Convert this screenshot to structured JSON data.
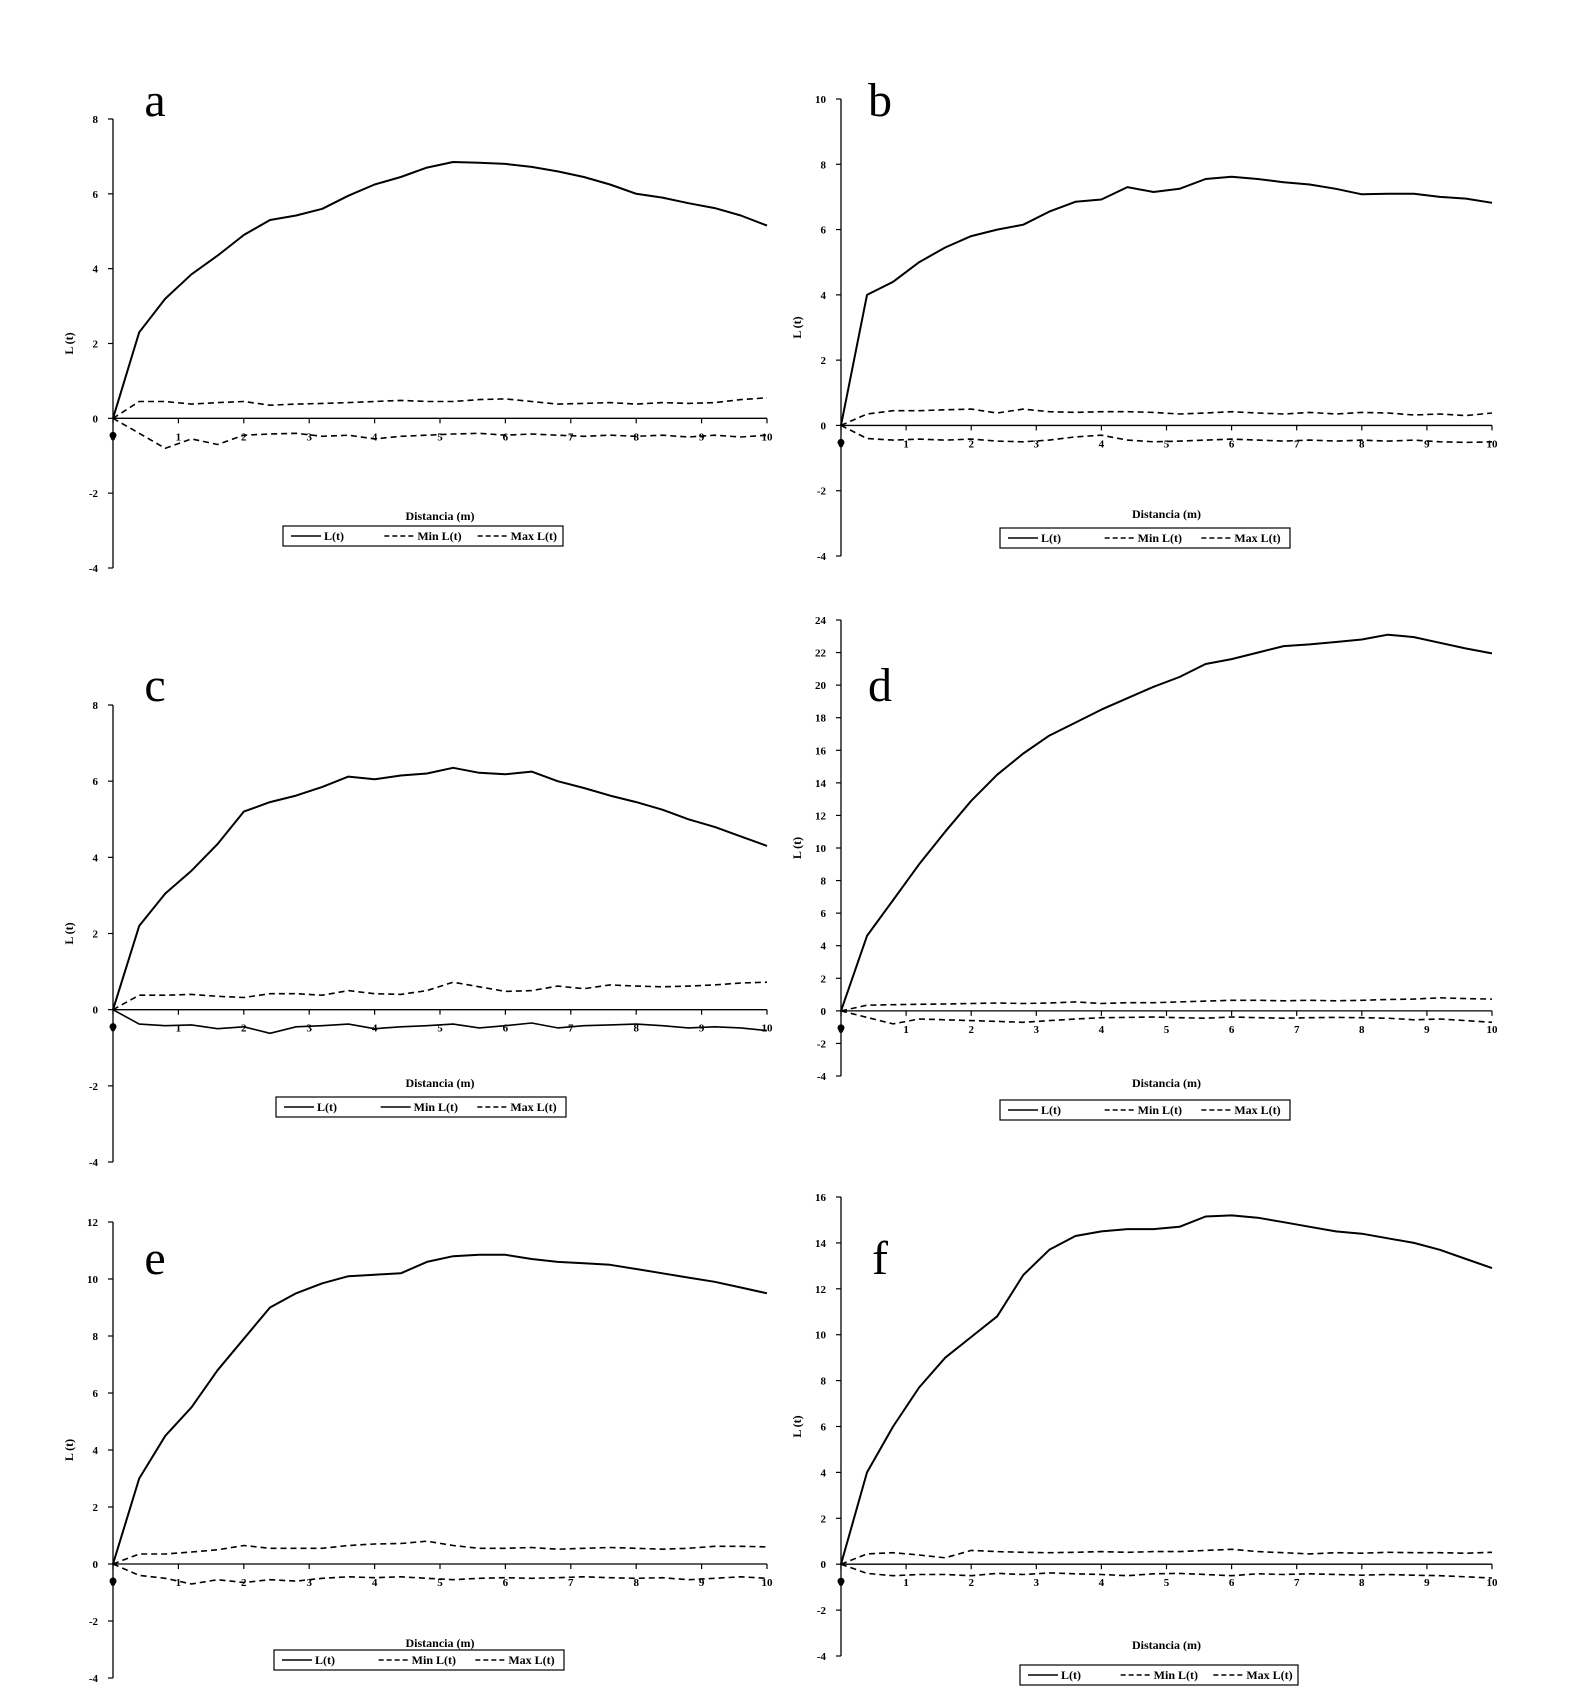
{
  "figure": {
    "xlabel": "Distancia (m)",
    "ylabel": "L (t)",
    "legend": [
      "L(t)",
      "Min L(t)",
      "Max L(t)"
    ]
  },
  "chart_data": [
    {
      "panel": "a",
      "type": "line",
      "x": [
        0,
        0.4,
        0.8,
        1.2,
        1.6,
        2,
        2.4,
        2.8,
        3.2,
        3.6,
        4,
        4.4,
        4.8,
        5.2,
        5.6,
        6,
        6.4,
        6.8,
        7.2,
        7.6,
        8,
        8.4,
        8.8,
        9.2,
        9.6,
        10
      ],
      "ylim": [
        -4,
        8
      ],
      "yticks": [
        -4,
        -2,
        0,
        2,
        4,
        6,
        8
      ],
      "xlim": [
        0,
        10
      ],
      "minmax_style": [
        "dashed",
        "dashed"
      ],
      "series": [
        {
          "name": "L(t)",
          "values": [
            0,
            2.3,
            3.2,
            3.85,
            4.35,
            4.9,
            5.3,
            5.42,
            5.6,
            5.95,
            6.25,
            6.45,
            6.7,
            6.85,
            6.83,
            6.8,
            6.72,
            6.6,
            6.45,
            6.25,
            6.0,
            5.9,
            5.75,
            5.62,
            5.42,
            5.15
          ]
        },
        {
          "name": "Min L(t)",
          "values": [
            0,
            -0.4,
            -0.8,
            -0.55,
            -0.7,
            -0.45,
            -0.42,
            -0.4,
            -0.48,
            -0.45,
            -0.55,
            -0.48,
            -0.45,
            -0.42,
            -0.4,
            -0.45,
            -0.42,
            -0.45,
            -0.48,
            -0.45,
            -0.48,
            -0.45,
            -0.5,
            -0.45,
            -0.5,
            -0.45
          ]
        },
        {
          "name": "Max L(t)",
          "values": [
            0,
            0.45,
            0.45,
            0.38,
            0.42,
            0.45,
            0.35,
            0.38,
            0.4,
            0.42,
            0.45,
            0.48,
            0.45,
            0.45,
            0.5,
            0.52,
            0.45,
            0.38,
            0.4,
            0.42,
            0.38,
            0.42,
            0.4,
            0.42,
            0.5,
            0.55
          ]
        }
      ]
    },
    {
      "panel": "b",
      "type": "line",
      "x": [
        0,
        0.4,
        0.8,
        1.2,
        1.6,
        2,
        2.4,
        2.8,
        3.2,
        3.6,
        4,
        4.4,
        4.8,
        5.2,
        5.6,
        6,
        6.4,
        6.8,
        7.2,
        7.6,
        8,
        8.4,
        8.8,
        9.2,
        9.6,
        10
      ],
      "ylim": [
        -4,
        10
      ],
      "yticks": [
        -4,
        -2,
        0,
        2,
        4,
        6,
        8,
        10
      ],
      "xlim": [
        0,
        10
      ],
      "minmax_style": [
        "dashed",
        "dashed"
      ],
      "series": [
        {
          "name": "L(t)",
          "values": [
            0,
            4.0,
            4.4,
            5.0,
            5.45,
            5.8,
            6.0,
            6.15,
            6.55,
            6.85,
            6.92,
            7.3,
            7.15,
            7.25,
            7.55,
            7.62,
            7.55,
            7.45,
            7.38,
            7.25,
            7.08,
            7.1,
            7.1,
            7.0,
            6.95,
            6.82
          ]
        },
        {
          "name": "Min L(t)",
          "values": [
            0,
            -0.4,
            -0.45,
            -0.42,
            -0.45,
            -0.42,
            -0.48,
            -0.5,
            -0.45,
            -0.35,
            -0.3,
            -0.45,
            -0.5,
            -0.48,
            -0.45,
            -0.42,
            -0.45,
            -0.48,
            -0.45,
            -0.48,
            -0.45,
            -0.48,
            -0.45,
            -0.5,
            -0.52,
            -0.5
          ]
        },
        {
          "name": "Max L(t)",
          "values": [
            0,
            0.35,
            0.45,
            0.45,
            0.48,
            0.5,
            0.38,
            0.5,
            0.42,
            0.4,
            0.42,
            0.42,
            0.4,
            0.35,
            0.38,
            0.42,
            0.38,
            0.35,
            0.4,
            0.35,
            0.4,
            0.38,
            0.32,
            0.35,
            0.3,
            0.38
          ]
        }
      ]
    },
    {
      "panel": "c",
      "type": "line",
      "x": [
        0,
        0.4,
        0.8,
        1.2,
        1.6,
        2,
        2.4,
        2.8,
        3.2,
        3.6,
        4,
        4.4,
        4.8,
        5.2,
        5.6,
        6,
        6.4,
        6.8,
        7.2,
        7.6,
        8,
        8.4,
        8.8,
        9.2,
        9.6,
        10
      ],
      "ylim": [
        -4,
        8
      ],
      "yticks": [
        -4,
        -2,
        0,
        2,
        4,
        6,
        8
      ],
      "xlim": [
        0,
        10
      ],
      "minmax_style": [
        "solid",
        "dashed"
      ],
      "series": [
        {
          "name": "L(t)",
          "values": [
            0,
            2.2,
            3.05,
            3.65,
            4.35,
            5.2,
            5.45,
            5.62,
            5.85,
            6.12,
            6.05,
            6.15,
            6.2,
            6.35,
            6.22,
            6.18,
            6.25,
            6.0,
            5.82,
            5.62,
            5.45,
            5.25,
            5.0,
            4.8,
            4.55,
            4.3
          ]
        },
        {
          "name": "Min L(t)",
          "values": [
            0,
            -0.38,
            -0.42,
            -0.4,
            -0.5,
            -0.45,
            -0.62,
            -0.45,
            -0.42,
            -0.38,
            -0.5,
            -0.45,
            -0.42,
            -0.38,
            -0.48,
            -0.42,
            -0.35,
            -0.48,
            -0.42,
            -0.4,
            -0.38,
            -0.42,
            -0.48,
            -0.45,
            -0.48,
            -0.55
          ]
        },
        {
          "name": "Max L(t)",
          "values": [
            0,
            0.38,
            0.38,
            0.4,
            0.35,
            0.32,
            0.42,
            0.42,
            0.38,
            0.5,
            0.42,
            0.4,
            0.5,
            0.72,
            0.6,
            0.48,
            0.5,
            0.62,
            0.55,
            0.65,
            0.62,
            0.6,
            0.62,
            0.65,
            0.7,
            0.72
          ]
        }
      ]
    },
    {
      "panel": "d",
      "type": "line",
      "x": [
        0,
        0.4,
        0.8,
        1.2,
        1.6,
        2,
        2.4,
        2.8,
        3.2,
        3.6,
        4,
        4.4,
        4.8,
        5.2,
        5.6,
        6,
        6.4,
        6.8,
        7.2,
        7.6,
        8,
        8.4,
        8.8,
        9.2,
        9.6,
        10
      ],
      "ylim": [
        -4,
        24
      ],
      "yticks": [
        -4,
        -2,
        0,
        2,
        4,
        6,
        8,
        10,
        12,
        14,
        16,
        18,
        20,
        22,
        24
      ],
      "xlim": [
        0,
        10
      ],
      "minmax_style": [
        "dashed",
        "dashed"
      ],
      "series": [
        {
          "name": "L(t)",
          "values": [
            0,
            4.6,
            6.8,
            9.0,
            11.0,
            12.9,
            14.5,
            15.8,
            16.9,
            17.7,
            18.5,
            19.2,
            19.9,
            20.5,
            21.3,
            21.6,
            22.0,
            22.4,
            22.5,
            22.65,
            22.8,
            23.1,
            22.95,
            22.6,
            22.25,
            21.95
          ]
        },
        {
          "name": "Min L(t)",
          "values": [
            0,
            -0.4,
            -0.8,
            -0.5,
            -0.55,
            -0.6,
            -0.65,
            -0.7,
            -0.6,
            -0.5,
            -0.42,
            -0.4,
            -0.38,
            -0.42,
            -0.45,
            -0.38,
            -0.42,
            -0.45,
            -0.42,
            -0.4,
            -0.42,
            -0.45,
            -0.55,
            -0.5,
            -0.6,
            -0.7
          ]
        },
        {
          "name": "Max L(t)",
          "values": [
            0,
            0.35,
            0.38,
            0.4,
            0.42,
            0.45,
            0.48,
            0.45,
            0.48,
            0.55,
            0.45,
            0.5,
            0.5,
            0.55,
            0.6,
            0.65,
            0.65,
            0.62,
            0.65,
            0.62,
            0.65,
            0.7,
            0.72,
            0.8,
            0.75,
            0.72
          ]
        }
      ]
    },
    {
      "panel": "e",
      "type": "line",
      "x": [
        0,
        0.4,
        0.8,
        1.2,
        1.6,
        2,
        2.4,
        2.8,
        3.2,
        3.6,
        4,
        4.4,
        4.8,
        5.2,
        5.6,
        6,
        6.4,
        6.8,
        7.2,
        7.6,
        8,
        8.4,
        8.8,
        9.2,
        9.6,
        10
      ],
      "ylim": [
        -4,
        12
      ],
      "yticks": [
        -4,
        -2,
        0,
        2,
        4,
        6,
        8,
        10,
        12
      ],
      "xlim": [
        0,
        10
      ],
      "minmax_style": [
        "dashed",
        "dashed"
      ],
      "series": [
        {
          "name": "L(t)",
          "values": [
            0,
            3.0,
            4.5,
            5.5,
            6.8,
            7.9,
            9.0,
            9.5,
            9.85,
            10.1,
            10.15,
            10.2,
            10.6,
            10.8,
            10.85,
            10.85,
            10.7,
            10.6,
            10.55,
            10.5,
            10.35,
            10.2,
            10.05,
            9.9,
            9.7,
            9.5
          ]
        },
        {
          "name": "Min L(t)",
          "values": [
            0,
            -0.4,
            -0.5,
            -0.7,
            -0.55,
            -0.65,
            -0.55,
            -0.6,
            -0.5,
            -0.45,
            -0.48,
            -0.45,
            -0.5,
            -0.55,
            -0.5,
            -0.48,
            -0.5,
            -0.48,
            -0.45,
            -0.48,
            -0.5,
            -0.48,
            -0.55,
            -0.5,
            -0.45,
            -0.5
          ]
        },
        {
          "name": "Max L(t)",
          "values": [
            0,
            0.35,
            0.35,
            0.42,
            0.5,
            0.65,
            0.55,
            0.55,
            0.55,
            0.65,
            0.7,
            0.72,
            0.8,
            0.65,
            0.55,
            0.55,
            0.58,
            0.52,
            0.55,
            0.58,
            0.55,
            0.52,
            0.55,
            0.62,
            0.62,
            0.6
          ]
        }
      ]
    },
    {
      "panel": "f",
      "type": "line",
      "x": [
        0,
        0.4,
        0.8,
        1.2,
        1.6,
        2,
        2.4,
        2.8,
        3.2,
        3.6,
        4,
        4.4,
        4.8,
        5.2,
        5.6,
        6,
        6.4,
        6.8,
        7.2,
        7.6,
        8,
        8.4,
        8.8,
        9.2,
        9.6,
        10
      ],
      "ylim": [
        -4,
        16
      ],
      "yticks": [
        -4,
        -2,
        0,
        2,
        4,
        6,
        8,
        10,
        12,
        14,
        16
      ],
      "xlim": [
        0,
        10
      ],
      "minmax_style": [
        "dashed",
        "dashed"
      ],
      "series": [
        {
          "name": "L(t)",
          "values": [
            0,
            4.0,
            6.0,
            7.7,
            9.0,
            9.9,
            10.8,
            12.6,
            13.7,
            14.3,
            14.5,
            14.6,
            14.6,
            14.7,
            15.15,
            15.2,
            15.1,
            14.9,
            14.7,
            14.5,
            14.4,
            14.2,
            14.0,
            13.7,
            13.3,
            12.9
          ]
        },
        {
          "name": "Min L(t)",
          "values": [
            0,
            -0.4,
            -0.5,
            -0.45,
            -0.45,
            -0.5,
            -0.4,
            -0.45,
            -0.38,
            -0.42,
            -0.45,
            -0.5,
            -0.42,
            -0.4,
            -0.45,
            -0.5,
            -0.42,
            -0.45,
            -0.42,
            -0.45,
            -0.48,
            -0.45,
            -0.48,
            -0.5,
            -0.55,
            -0.6
          ]
        },
        {
          "name": "Max L(t)",
          "values": [
            0,
            0.45,
            0.5,
            0.4,
            0.28,
            0.6,
            0.55,
            0.52,
            0.5,
            0.52,
            0.55,
            0.52,
            0.55,
            0.55,
            0.6,
            0.65,
            0.55,
            0.5,
            0.45,
            0.5,
            0.48,
            0.52,
            0.5,
            0.5,
            0.48,
            0.52
          ]
        }
      ]
    }
  ]
}
